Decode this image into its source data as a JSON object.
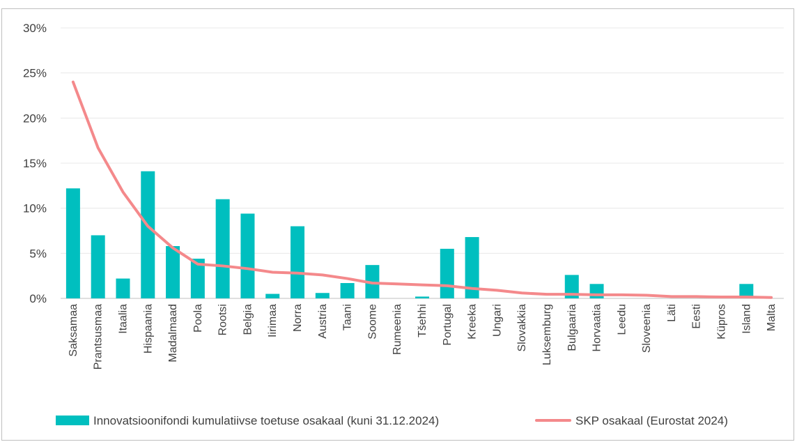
{
  "chart_data": {
    "type": "bar",
    "categories": [
      "Saksamaa",
      "Prantsusmaa",
      "Itaalia",
      "Hispaania",
      "Madalmaad",
      "Poola",
      "Rootsi",
      "Belgia",
      "Iirimaa",
      "Norra",
      "Austria",
      "Taani",
      "Soome",
      "Rumeenia",
      "Tšehhi",
      "Portugal",
      "Kreeka",
      "Ungari",
      "Slovakkia",
      "Luksemburg",
      "Bulgaaria",
      "Horvaatia",
      "Leedu",
      "Sloveenia",
      "Läti",
      "Eesti",
      "Küpros",
      "Island",
      "Malta"
    ],
    "series": [
      {
        "name": "Innovatsioonifondi kumulatiivse toetuse osakaal (kuni 31.12.2024)",
        "type": "bar",
        "color": "#00BFBF",
        "values": [
          12.2,
          7.0,
          2.2,
          14.1,
          5.8,
          4.4,
          11.0,
          9.4,
          0.5,
          8.0,
          0.6,
          1.7,
          3.7,
          0.0,
          0.2,
          5.5,
          6.8,
          0.0,
          0.0,
          0.0,
          2.6,
          1.6,
          0.0,
          0.0,
          0.0,
          0.0,
          0.0,
          1.6,
          0.0
        ]
      },
      {
        "name": "SKP osakaal (Eurostat 2024)",
        "type": "line",
        "color": "#F4898B",
        "values": [
          24.0,
          16.7,
          11.8,
          8.0,
          5.6,
          3.8,
          3.6,
          3.3,
          2.9,
          2.8,
          2.6,
          2.2,
          1.7,
          1.6,
          1.5,
          1.4,
          1.1,
          0.9,
          0.6,
          0.45,
          0.45,
          0.4,
          0.4,
          0.35,
          0.2,
          0.2,
          0.15,
          0.15,
          0.1
        ]
      }
    ],
    "ylim": [
      0,
      30
    ],
    "yticks": [
      "0%",
      "5%",
      "10%",
      "15%",
      "20%",
      "25%",
      "30%"
    ],
    "grid": true,
    "legend": "bottom"
  }
}
